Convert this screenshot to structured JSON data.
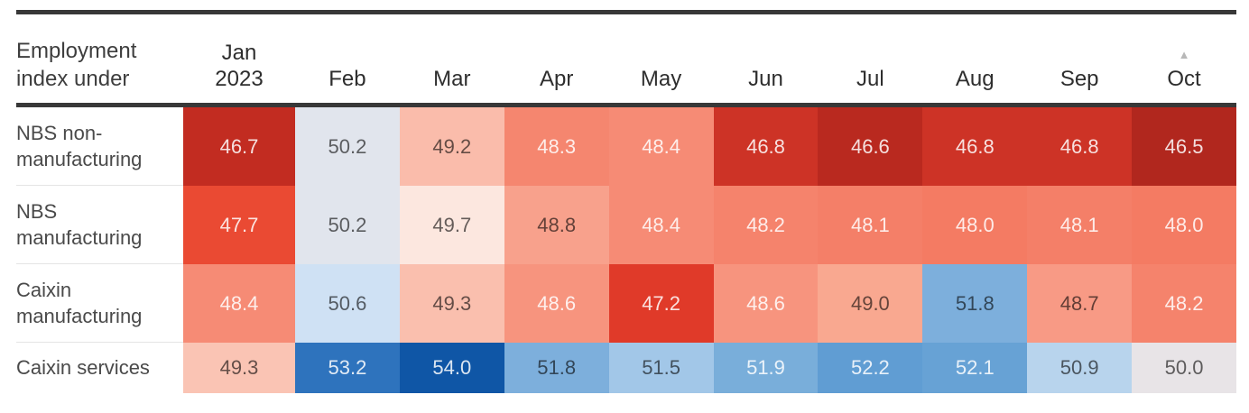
{
  "table": {
    "corner_header": "Employment index under",
    "columns": [
      {
        "label": "Jan\n2023",
        "sorted": false
      },
      {
        "label": "Feb",
        "sorted": false
      },
      {
        "label": "Mar",
        "sorted": false
      },
      {
        "label": "Apr",
        "sorted": false
      },
      {
        "label": "May",
        "sorted": false
      },
      {
        "label": "Jun",
        "sorted": false
      },
      {
        "label": "Jul",
        "sorted": false
      },
      {
        "label": "Aug",
        "sorted": false
      },
      {
        "label": "Sep",
        "sorted": false
      },
      {
        "label": "Oct",
        "sorted": true
      }
    ],
    "rows": [
      {
        "label": "NBS non-manufacturing",
        "cells": [
          {
            "v": "46.7",
            "bg": "#c22c21",
            "fg": "light"
          },
          {
            "v": "50.2",
            "bg": "#e1e5ed",
            "fg": "dark"
          },
          {
            "v": "49.2",
            "bg": "#fabcab",
            "fg": "dark"
          },
          {
            "v": "48.3",
            "bg": "#f5866f",
            "fg": "light"
          },
          {
            "v": "48.4",
            "bg": "#f68b75",
            "fg": "light"
          },
          {
            "v": "46.8",
            "bg": "#cd3326",
            "fg": "light"
          },
          {
            "v": "46.6",
            "bg": "#b9291f",
            "fg": "light"
          },
          {
            "v": "46.8",
            "bg": "#cd3326",
            "fg": "light"
          },
          {
            "v": "46.8",
            "bg": "#cd3326",
            "fg": "light"
          },
          {
            "v": "46.5",
            "bg": "#b1271e",
            "fg": "light"
          }
        ]
      },
      {
        "label": "NBS manufacturing",
        "cells": [
          {
            "v": "47.7",
            "bg": "#ea4a33",
            "fg": "light"
          },
          {
            "v": "50.2",
            "bg": "#e1e5ed",
            "fg": "dark"
          },
          {
            "v": "49.7",
            "bg": "#fce7df",
            "fg": "dark"
          },
          {
            "v": "48.8",
            "bg": "#f8a18c",
            "fg": "dark"
          },
          {
            "v": "48.4",
            "bg": "#f68b75",
            "fg": "light"
          },
          {
            "v": "48.2",
            "bg": "#f5836c",
            "fg": "light"
          },
          {
            "v": "48.1",
            "bg": "#f47f68",
            "fg": "light"
          },
          {
            "v": "48.0",
            "bg": "#f47b63",
            "fg": "light"
          },
          {
            "v": "48.1",
            "bg": "#f47f68",
            "fg": "light"
          },
          {
            "v": "48.0",
            "bg": "#f47b63",
            "fg": "light"
          }
        ]
      },
      {
        "label": "Caixin manufacturing",
        "cells": [
          {
            "v": "48.4",
            "bg": "#f68b75",
            "fg": "light"
          },
          {
            "v": "50.6",
            "bg": "#cfe1f4",
            "fg": "dark"
          },
          {
            "v": "49.3",
            "bg": "#fabfae",
            "fg": "dark"
          },
          {
            "v": "48.6",
            "bg": "#f7947e",
            "fg": "light"
          },
          {
            "v": "47.2",
            "bg": "#e03a29",
            "fg": "light"
          },
          {
            "v": "48.6",
            "bg": "#f7947e",
            "fg": "light"
          },
          {
            "v": "49.0",
            "bg": "#f9a890",
            "fg": "dark"
          },
          {
            "v": "51.8",
            "bg": "#7dafdc",
            "fg": "dark"
          },
          {
            "v": "48.7",
            "bg": "#f89a85",
            "fg": "dark"
          },
          {
            "v": "48.2",
            "bg": "#f5836c",
            "fg": "light"
          }
        ]
      },
      {
        "label": "Caixin services",
        "cells": [
          {
            "v": "49.3",
            "bg": "#fac4b4",
            "fg": "dark"
          },
          {
            "v": "53.2",
            "bg": "#2e73bd",
            "fg": "light"
          },
          {
            "v": "54.0",
            "bg": "#0f56a6",
            "fg": "light"
          },
          {
            "v": "51.8",
            "bg": "#7dafdc",
            "fg": "dark"
          },
          {
            "v": "51.5",
            "bg": "#a2c7e8",
            "fg": "dark"
          },
          {
            "v": "51.9",
            "bg": "#79aeda",
            "fg": "light"
          },
          {
            "v": "52.2",
            "bg": "#609dd3",
            "fg": "light"
          },
          {
            "v": "52.1",
            "bg": "#67a2d5",
            "fg": "light"
          },
          {
            "v": "50.9",
            "bg": "#b8d4ed",
            "fg": "dark"
          },
          {
            "v": "50.0",
            "bg": "#e8e4e7",
            "fg": "dark"
          }
        ]
      }
    ]
  },
  "icons": {
    "sort_ascending": "▲"
  },
  "colors": {
    "rule": "#383838",
    "header_text": "#2e2e2e",
    "corner_text": "#3e3e3e",
    "row_label_text": "#4a4a4a",
    "label_divider": "#e4e4e4",
    "sort_icon": "#b8b8b8",
    "cell_text_light": "rgba(255,255,255,0.85)",
    "cell_text_dark": "rgba(0,0,0,0.60)",
    "scale_low_red": "#b1271e",
    "scale_mid_neutral": "#e8e4e7",
    "scale_high_blue": "#0f56a6"
  },
  "chart_data": {
    "type": "heatmap",
    "title": "Employment index under",
    "x_categories": [
      "Jan 2023",
      "Feb",
      "Mar",
      "Apr",
      "May",
      "Jun",
      "Jul",
      "Aug",
      "Sep",
      "Oct"
    ],
    "y_categories": [
      "NBS non-manufacturing",
      "NBS manufacturing",
      "Caixin manufacturing",
      "Caixin services"
    ],
    "values": [
      [
        46.7,
        50.2,
        49.2,
        48.3,
        48.4,
        46.8,
        46.6,
        46.8,
        46.8,
        46.5
      ],
      [
        47.7,
        50.2,
        49.7,
        48.8,
        48.4,
        48.2,
        48.1,
        48.0,
        48.1,
        48.0
      ],
      [
        48.4,
        50.6,
        49.3,
        48.6,
        47.2,
        48.6,
        49.0,
        51.8,
        48.7,
        48.2
      ],
      [
        49.3,
        53.2,
        54.0,
        51.8,
        51.5,
        51.9,
        52.2,
        52.1,
        50.9,
        50.0
      ]
    ],
    "color_scale": {
      "low": "#b1271e",
      "midpoint": 50,
      "mid": "#e8e4e7",
      "high": "#0f56a6"
    },
    "sorted_column": "Oct",
    "sort_direction": "ascending",
    "legend_position": "none",
    "grid": false
  }
}
